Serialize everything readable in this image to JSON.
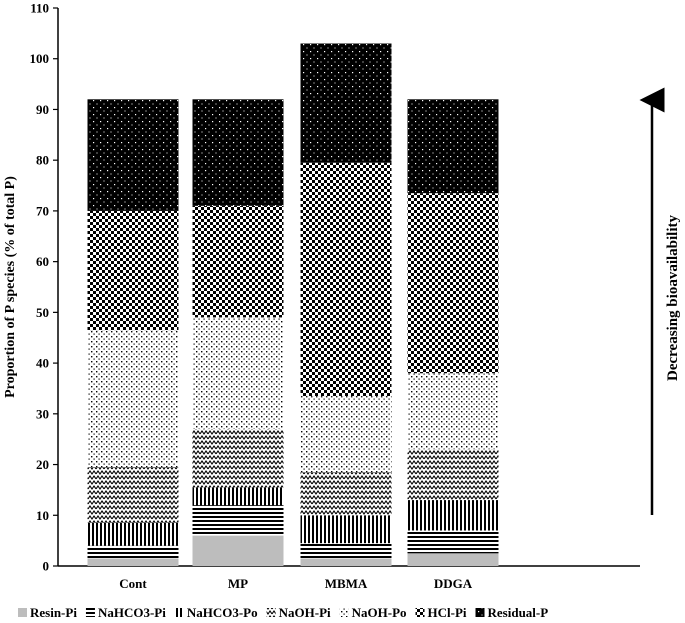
{
  "chart_data": {
    "type": "stacked-bar",
    "title": "",
    "xlabel": "",
    "ylabel": "Proportion of P species (% of total P)",
    "ylim": [
      0,
      110
    ],
    "yticks": [
      0,
      10,
      20,
      30,
      40,
      50,
      60,
      70,
      80,
      90,
      100,
      110
    ],
    "categories": [
      "Cont",
      "MP",
      "MBMA",
      "DDGA"
    ],
    "series": [
      {
        "name": "Resin-Pi",
        "values": [
          1.5,
          6.0,
          1.5,
          2.5
        ],
        "pattern": "solid-grey"
      },
      {
        "name": "NaHCO3-Pi",
        "values": [
          2.5,
          6.0,
          3.0,
          4.5
        ],
        "pattern": "horizontal-lines"
      },
      {
        "name": "NaHCO3-Po",
        "values": [
          4.5,
          3.5,
          5.5,
          6.0
        ],
        "pattern": "vertical-lines"
      },
      {
        "name": "NaOH-Pi",
        "values": [
          11.0,
          11.5,
          8.5,
          10.0
        ],
        "pattern": "zigzag"
      },
      {
        "name": "NaOH-Po",
        "values": [
          27.0,
          22.0,
          15.0,
          15.0
        ],
        "pattern": "dots"
      },
      {
        "name": "HCl-Pi",
        "values": [
          23.5,
          22.0,
          46.0,
          35.5
        ],
        "pattern": "checker"
      },
      {
        "name": "Residual-P",
        "values": [
          22.0,
          21.0,
          23.5,
          18.5
        ],
        "pattern": "black-dots"
      }
    ],
    "annotation": "Decreasing bioavailability",
    "legend_position": "bottom",
    "grid": false
  }
}
